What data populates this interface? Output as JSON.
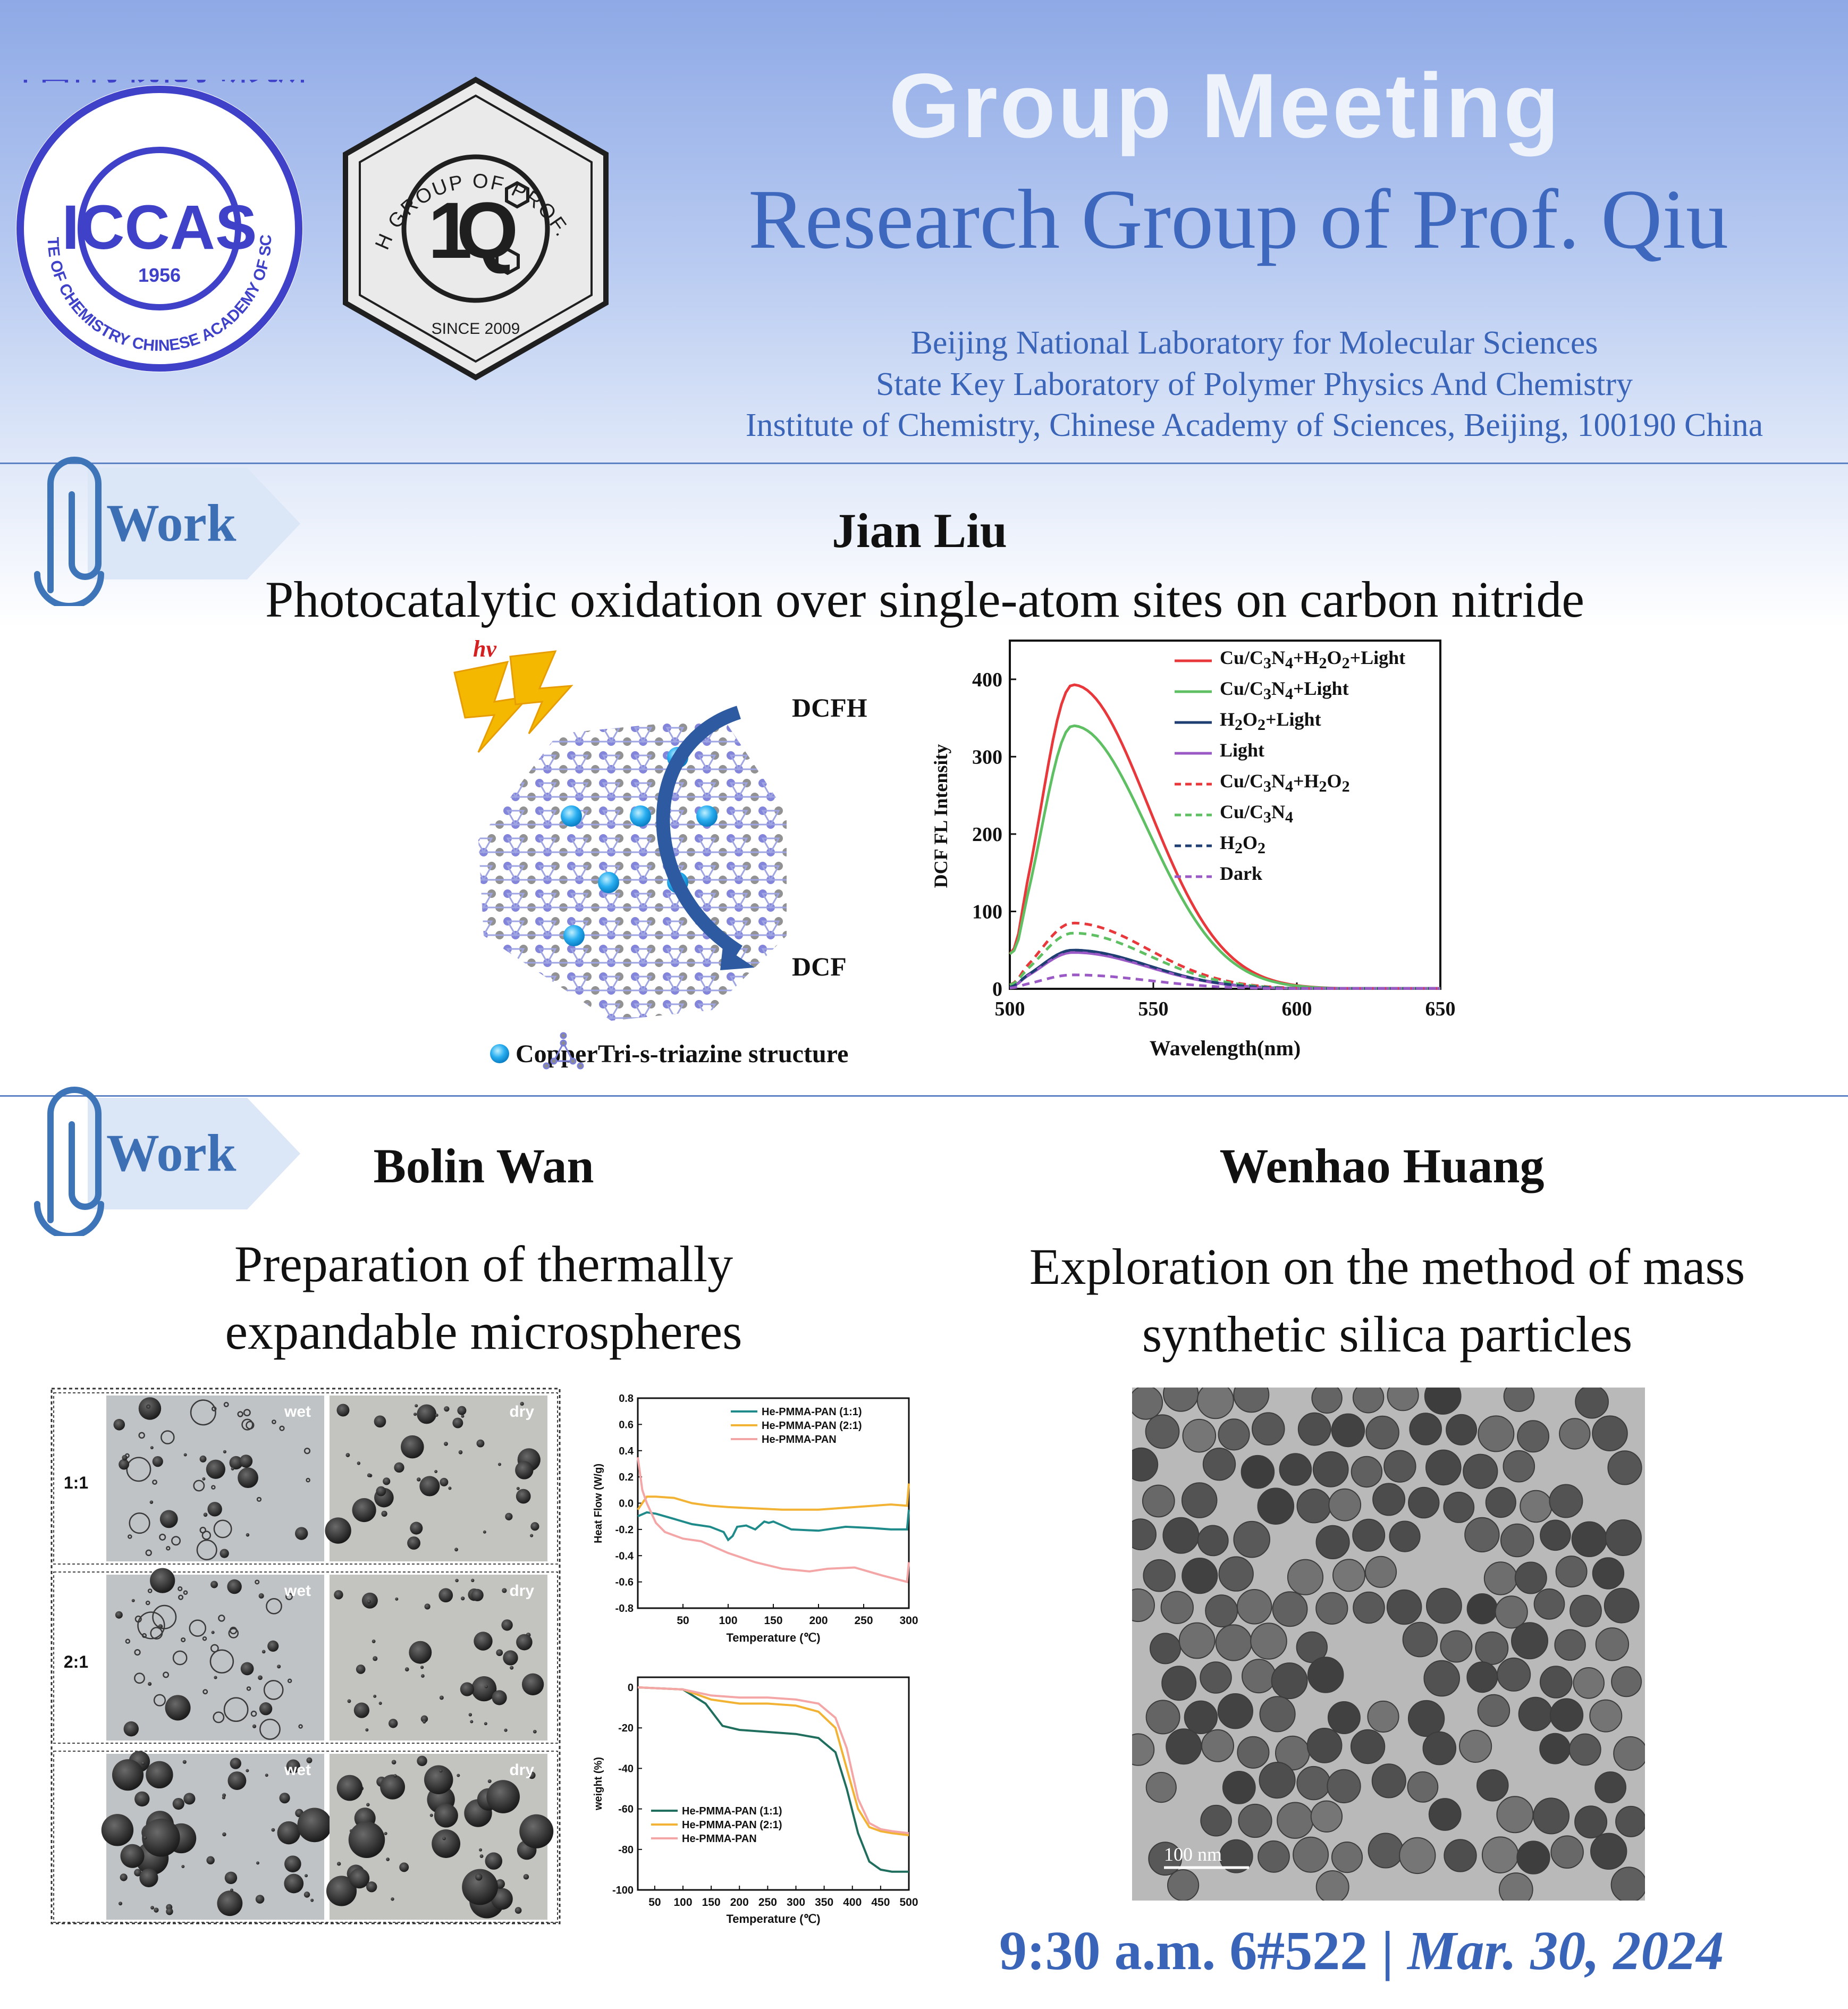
{
  "header": {
    "title": "Group Meeting",
    "subtitle": "Research Group of Prof. Qiu",
    "affiliations": [
      "Beijing National Laboratory for Molecular Sciences",
      "State Key Laboratory of Polymer Physics And Chemistry",
      "Institute of Chemistry, Chinese Academy of Sciences, Beijing, 100190 China"
    ],
    "logo_iccas": {
      "top_text": "中国科学院化学研究所",
      "main": "ICCAS",
      "year": "1956",
      "bottom_text": "INSTITUTE OF CHEMISTRY  CHINESE ACADEMY OF SCIENCES"
    },
    "logo_group": {
      "ring_text": "RESEARCH GROUP OF PROF. DONG QIU",
      "since": "SINCE 2009"
    }
  },
  "section1": {
    "tab_label": "Work",
    "presenter": "Jian Liu",
    "topic": "Photocatalytic oxidation over single-atom sites on carbon nitride",
    "scheme": {
      "hv": "hν",
      "top_label": "DCFH",
      "bottom_label": "DCF",
      "legend_copper": "Copper",
      "legend_triazine": "Tri-s-triazine structure"
    },
    "colors": {
      "red": "#e8383b",
      "green": "#5fbf63",
      "navy": "#1f3f73",
      "purple": "#9b59c6"
    },
    "chart_data": {
      "type": "line",
      "xlabel": "Wavelength(nm)",
      "ylabel": "DCF FL Intensity",
      "xlim": [
        500,
        650
      ],
      "ylim": [
        0,
        450
      ],
      "x_ticks": [
        "500",
        "550",
        "600",
        "650"
      ],
      "y_ticks": [
        "0",
        "100",
        "200",
        "300",
        "400"
      ],
      "legend_position": "top-right",
      "series": [
        {
          "name": "Cu/C3N4+H2O2+Light",
          "peak_x": 522,
          "peak": 393,
          "start": 45,
          "dashed": false,
          "color": "#e8383b"
        },
        {
          "name": "Cu/C3N4+Light",
          "peak_x": 522,
          "peak": 340,
          "start": 45,
          "dashed": false,
          "color": "#5fbf63"
        },
        {
          "name": "H2O2+Light",
          "peak_x": 522,
          "peak": 50,
          "start": 2,
          "dashed": false,
          "color": "#1f3f73"
        },
        {
          "name": "Light",
          "peak_x": 522,
          "peak": 47,
          "start": 2,
          "dashed": false,
          "color": "#9b59c6"
        },
        {
          "name": "Cu/C3N4+H2O2",
          "peak_x": 522,
          "peak": 85,
          "start": 5,
          "dashed": true,
          "color": "#e8383b"
        },
        {
          "name": "Cu/C3N4",
          "peak_x": 522,
          "peak": 72,
          "start": 5,
          "dashed": true,
          "color": "#5fbf63"
        },
        {
          "name": "H2O2",
          "peak_x": 522,
          "peak": 50,
          "start": 2,
          "dashed": true,
          "color": "#1f3f73"
        },
        {
          "name": "Dark",
          "peak_x": 522,
          "peak": 18,
          "start": 1,
          "dashed": true,
          "color": "#9b59c6"
        }
      ],
      "legend_html": [
        "Cu/C<sub>3</sub>N<sub>4</sub>+H<sub>2</sub>O<sub>2</sub>+Light",
        "Cu/C<sub>3</sub>N<sub>4</sub>+Light",
        "H<sub>2</sub>O<sub>2</sub>+Light",
        "Light",
        "Cu/C<sub>3</sub>N<sub>4</sub>+H<sub>2</sub>O<sub>2</sub>",
        "Cu/C<sub>3</sub>N<sub>4</sub>",
        "H<sub>2</sub>O<sub>2</sub>",
        "Dark"
      ]
    }
  },
  "section2": {
    "tab_label": "Work",
    "left": {
      "presenter": "Bolin Wan",
      "topic_lines": [
        "Preparation of thermally",
        "expandable microspheres"
      ],
      "micrographs": {
        "rows": [
          {
            "ratio": "1:1",
            "wet": "wet",
            "dry": "dry"
          },
          {
            "ratio": "2:1",
            "wet": "wet",
            "dry": "dry"
          },
          {
            "ratio": "",
            "wet": "wet",
            "dry": "dry"
          }
        ]
      },
      "dsc_chart": {
        "type": "line",
        "xlabel": "Temperature (℃)",
        "ylabel": "Heat Flow (W/g)",
        "xlim": [
          0,
          300
        ],
        "ylim": [
          -0.8,
          0.8
        ],
        "x_ticks": [
          "50",
          "100",
          "150",
          "200",
          "250",
          "300"
        ],
        "y_ticks": [
          "0.8",
          "0.6",
          "0.4",
          "0.2",
          "0.0",
          "-0.2",
          "-0.4",
          "-0.6",
          "-0.8"
        ],
        "legend_position": "top-right",
        "series": [
          {
            "name": "He-PMMA-PAN (1:1)",
            "color": "#1f8a8a",
            "x": [
              0,
              10,
              20,
              40,
              60,
              80,
              95,
              100,
              105,
              110,
              120,
              130,
              140,
              145,
              150,
              170,
              200,
              230,
              260,
              280,
              298,
              300
            ],
            "y": [
              -0.1,
              -0.07,
              -0.08,
              -0.12,
              -0.16,
              -0.18,
              -0.22,
              -0.28,
              -0.25,
              -0.18,
              -0.17,
              -0.2,
              -0.14,
              -0.15,
              -0.14,
              -0.2,
              -0.21,
              -0.18,
              -0.19,
              -0.2,
              -0.2,
              -0.05
            ]
          },
          {
            "name": "He-PMMA-PAN (2:1)",
            "color": "#f2b233",
            "x": [
              0,
              10,
              20,
              40,
              60,
              80,
              100,
              130,
              160,
              200,
              240,
              280,
              298,
              300
            ],
            "y": [
              -0.05,
              0.05,
              0.05,
              0.04,
              0.0,
              -0.02,
              -0.03,
              -0.04,
              -0.05,
              -0.05,
              -0.03,
              -0.01,
              -0.02,
              0.15
            ]
          },
          {
            "name": "He-PMMA-PAN",
            "color": "#f4a5a5",
            "x": [
              0,
              5,
              10,
              20,
              30,
              50,
              70,
              100,
              130,
              160,
              190,
              210,
              240,
              270,
              298,
              300
            ],
            "y": [
              0.35,
              0.1,
              0.0,
              -0.15,
              -0.22,
              -0.27,
              -0.29,
              -0.38,
              -0.45,
              -0.5,
              -0.52,
              -0.5,
              -0.49,
              -0.55,
              -0.6,
              -0.45
            ]
          }
        ]
      },
      "tga_chart": {
        "type": "line",
        "xlabel": "Temperature (℃)",
        "ylabel": "weight (%)",
        "xlim": [
          20,
          500
        ],
        "ylim": [
          -100,
          5
        ],
        "x_ticks": [
          "50",
          "100",
          "150",
          "200",
          "250",
          "300",
          "350",
          "400",
          "450",
          "500"
        ],
        "y_ticks": [
          "0",
          "-20",
          "-40",
          "-60",
          "-80",
          "-100"
        ],
        "legend_position": "bottom-left",
        "series": [
          {
            "name": "He-PMMA-PAN (1:1)",
            "color": "#1f6e5e",
            "x": [
              20,
              100,
              140,
              170,
              200,
              250,
              300,
              340,
              370,
              390,
              410,
              430,
              450,
              470,
              500
            ],
            "y": [
              0,
              -1,
              -8,
              -19,
              -21,
              -22,
              -23,
              -25,
              -32,
              -50,
              -72,
              -86,
              -90,
              -91,
              -91
            ]
          },
          {
            "name": "He-PMMA-PAN (2:1)",
            "color": "#f2b233",
            "x": [
              20,
              100,
              150,
              200,
              250,
              300,
              340,
              370,
              390,
              410,
              430,
              450,
              470,
              500
            ],
            "y": [
              0,
              -1,
              -6,
              -8,
              -8,
              -9,
              -12,
              -20,
              -40,
              -60,
              -69,
              -71,
              -72,
              -73
            ]
          },
          {
            "name": "He-PMMA-PAN",
            "color": "#f4a5a5",
            "x": [
              20,
              100,
              150,
              200,
              250,
              300,
              340,
              370,
              390,
              410,
              430,
              450,
              470,
              500
            ],
            "y": [
              0,
              -1,
              -4,
              -5,
              -5,
              -6,
              -8,
              -15,
              -30,
              -55,
              -67,
              -70,
              -71,
              -72
            ]
          }
        ]
      }
    },
    "right": {
      "presenter": "Wenhao Huang",
      "topic_lines": [
        "Exploration on the method of mass",
        "synthetic silica particles"
      ],
      "tem": {
        "scale_label": "100 nm"
      }
    }
  },
  "footer": {
    "time_place": "9:30 a.m. 6#522 | ",
    "date": "Mar. 30, 2024"
  }
}
